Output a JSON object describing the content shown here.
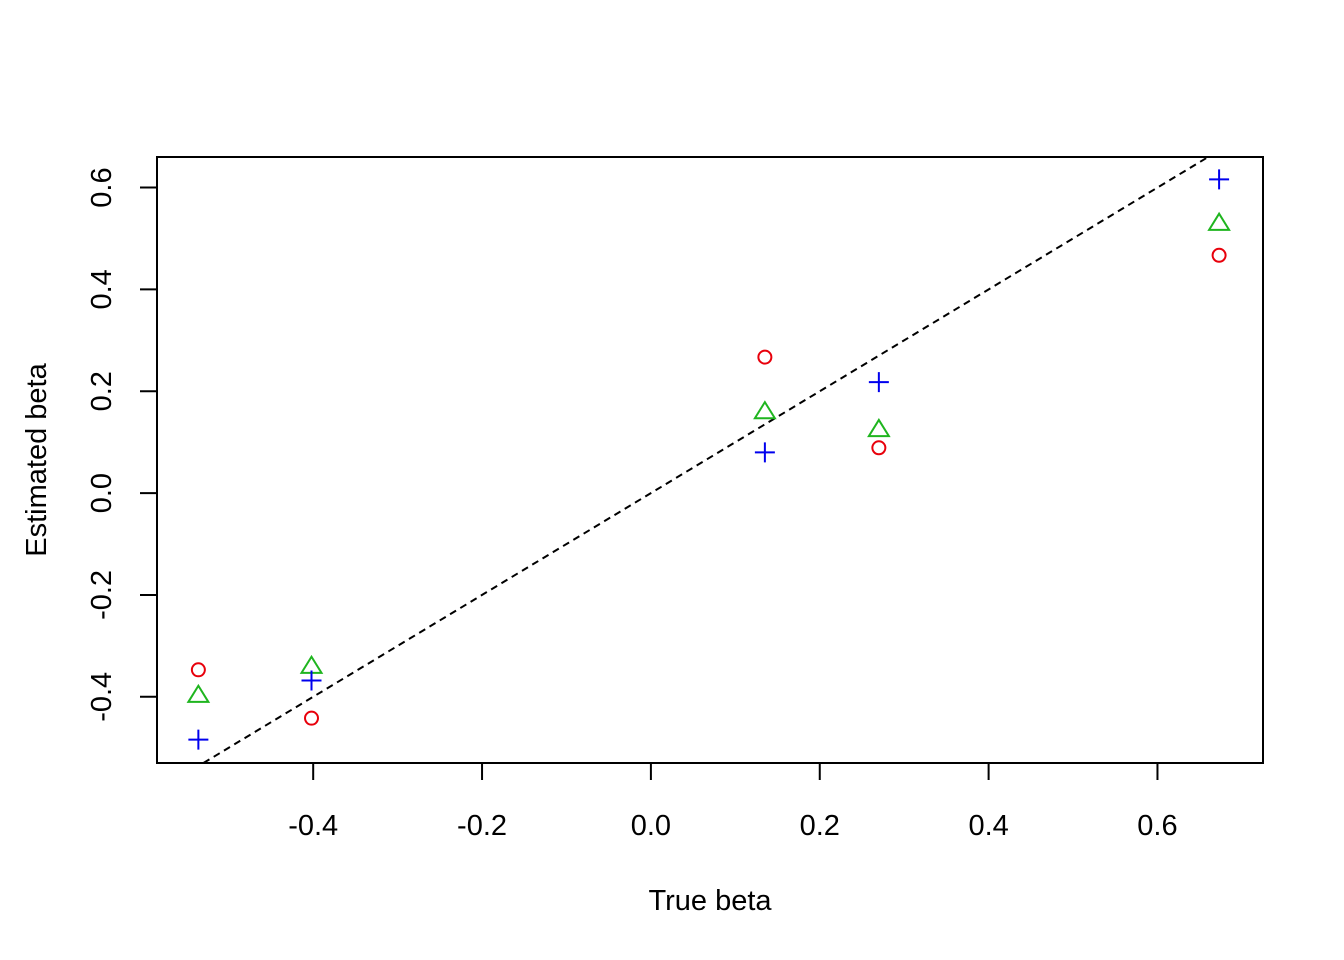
{
  "chart_data": {
    "type": "scatter",
    "title": "",
    "xlabel": "True beta",
    "ylabel": "Estimated beta",
    "xlim": [
      -0.585,
      0.725
    ],
    "ylim": [
      -0.53,
      0.66
    ],
    "x_ticks": [
      -0.4,
      -0.2,
      0.0,
      0.2,
      0.4,
      0.6
    ],
    "x_tick_labels": [
      "-0.4",
      "-0.2",
      "0.0",
      "0.2",
      "0.4",
      "0.6"
    ],
    "y_ticks": [
      -0.4,
      -0.2,
      0.0,
      0.2,
      0.4,
      0.6
    ],
    "y_tick_labels": [
      "-0.4",
      "-0.2",
      "0.0",
      "0.2",
      "0.4",
      "0.6"
    ],
    "grid": false,
    "legend": "none",
    "reference_line": {
      "slope": 1,
      "intercept": 0,
      "style": "dashed",
      "color": "#000000"
    },
    "series": [
      {
        "marker": "circle",
        "color": "#e8000b",
        "points": [
          {
            "x": -0.536,
            "y": -0.347
          },
          {
            "x": -0.402,
            "y": -0.442
          },
          {
            "x": 0.135,
            "y": 0.267
          },
          {
            "x": 0.27,
            "y": 0.089
          },
          {
            "x": 0.673,
            "y": 0.467
          }
        ]
      },
      {
        "marker": "triangle",
        "color": "#1fb51f",
        "points": [
          {
            "x": -0.536,
            "y": -0.397
          },
          {
            "x": -0.402,
            "y": -0.34
          },
          {
            "x": 0.135,
            "y": 0.16
          },
          {
            "x": 0.27,
            "y": 0.125
          },
          {
            "x": 0.673,
            "y": 0.53
          }
        ]
      },
      {
        "marker": "plus",
        "color": "#0000ee",
        "points": [
          {
            "x": -0.536,
            "y": -0.484
          },
          {
            "x": -0.402,
            "y": -0.368
          },
          {
            "x": 0.135,
            "y": 0.08
          },
          {
            "x": 0.27,
            "y": 0.218
          },
          {
            "x": 0.673,
            "y": 0.616
          }
        ]
      }
    ]
  }
}
